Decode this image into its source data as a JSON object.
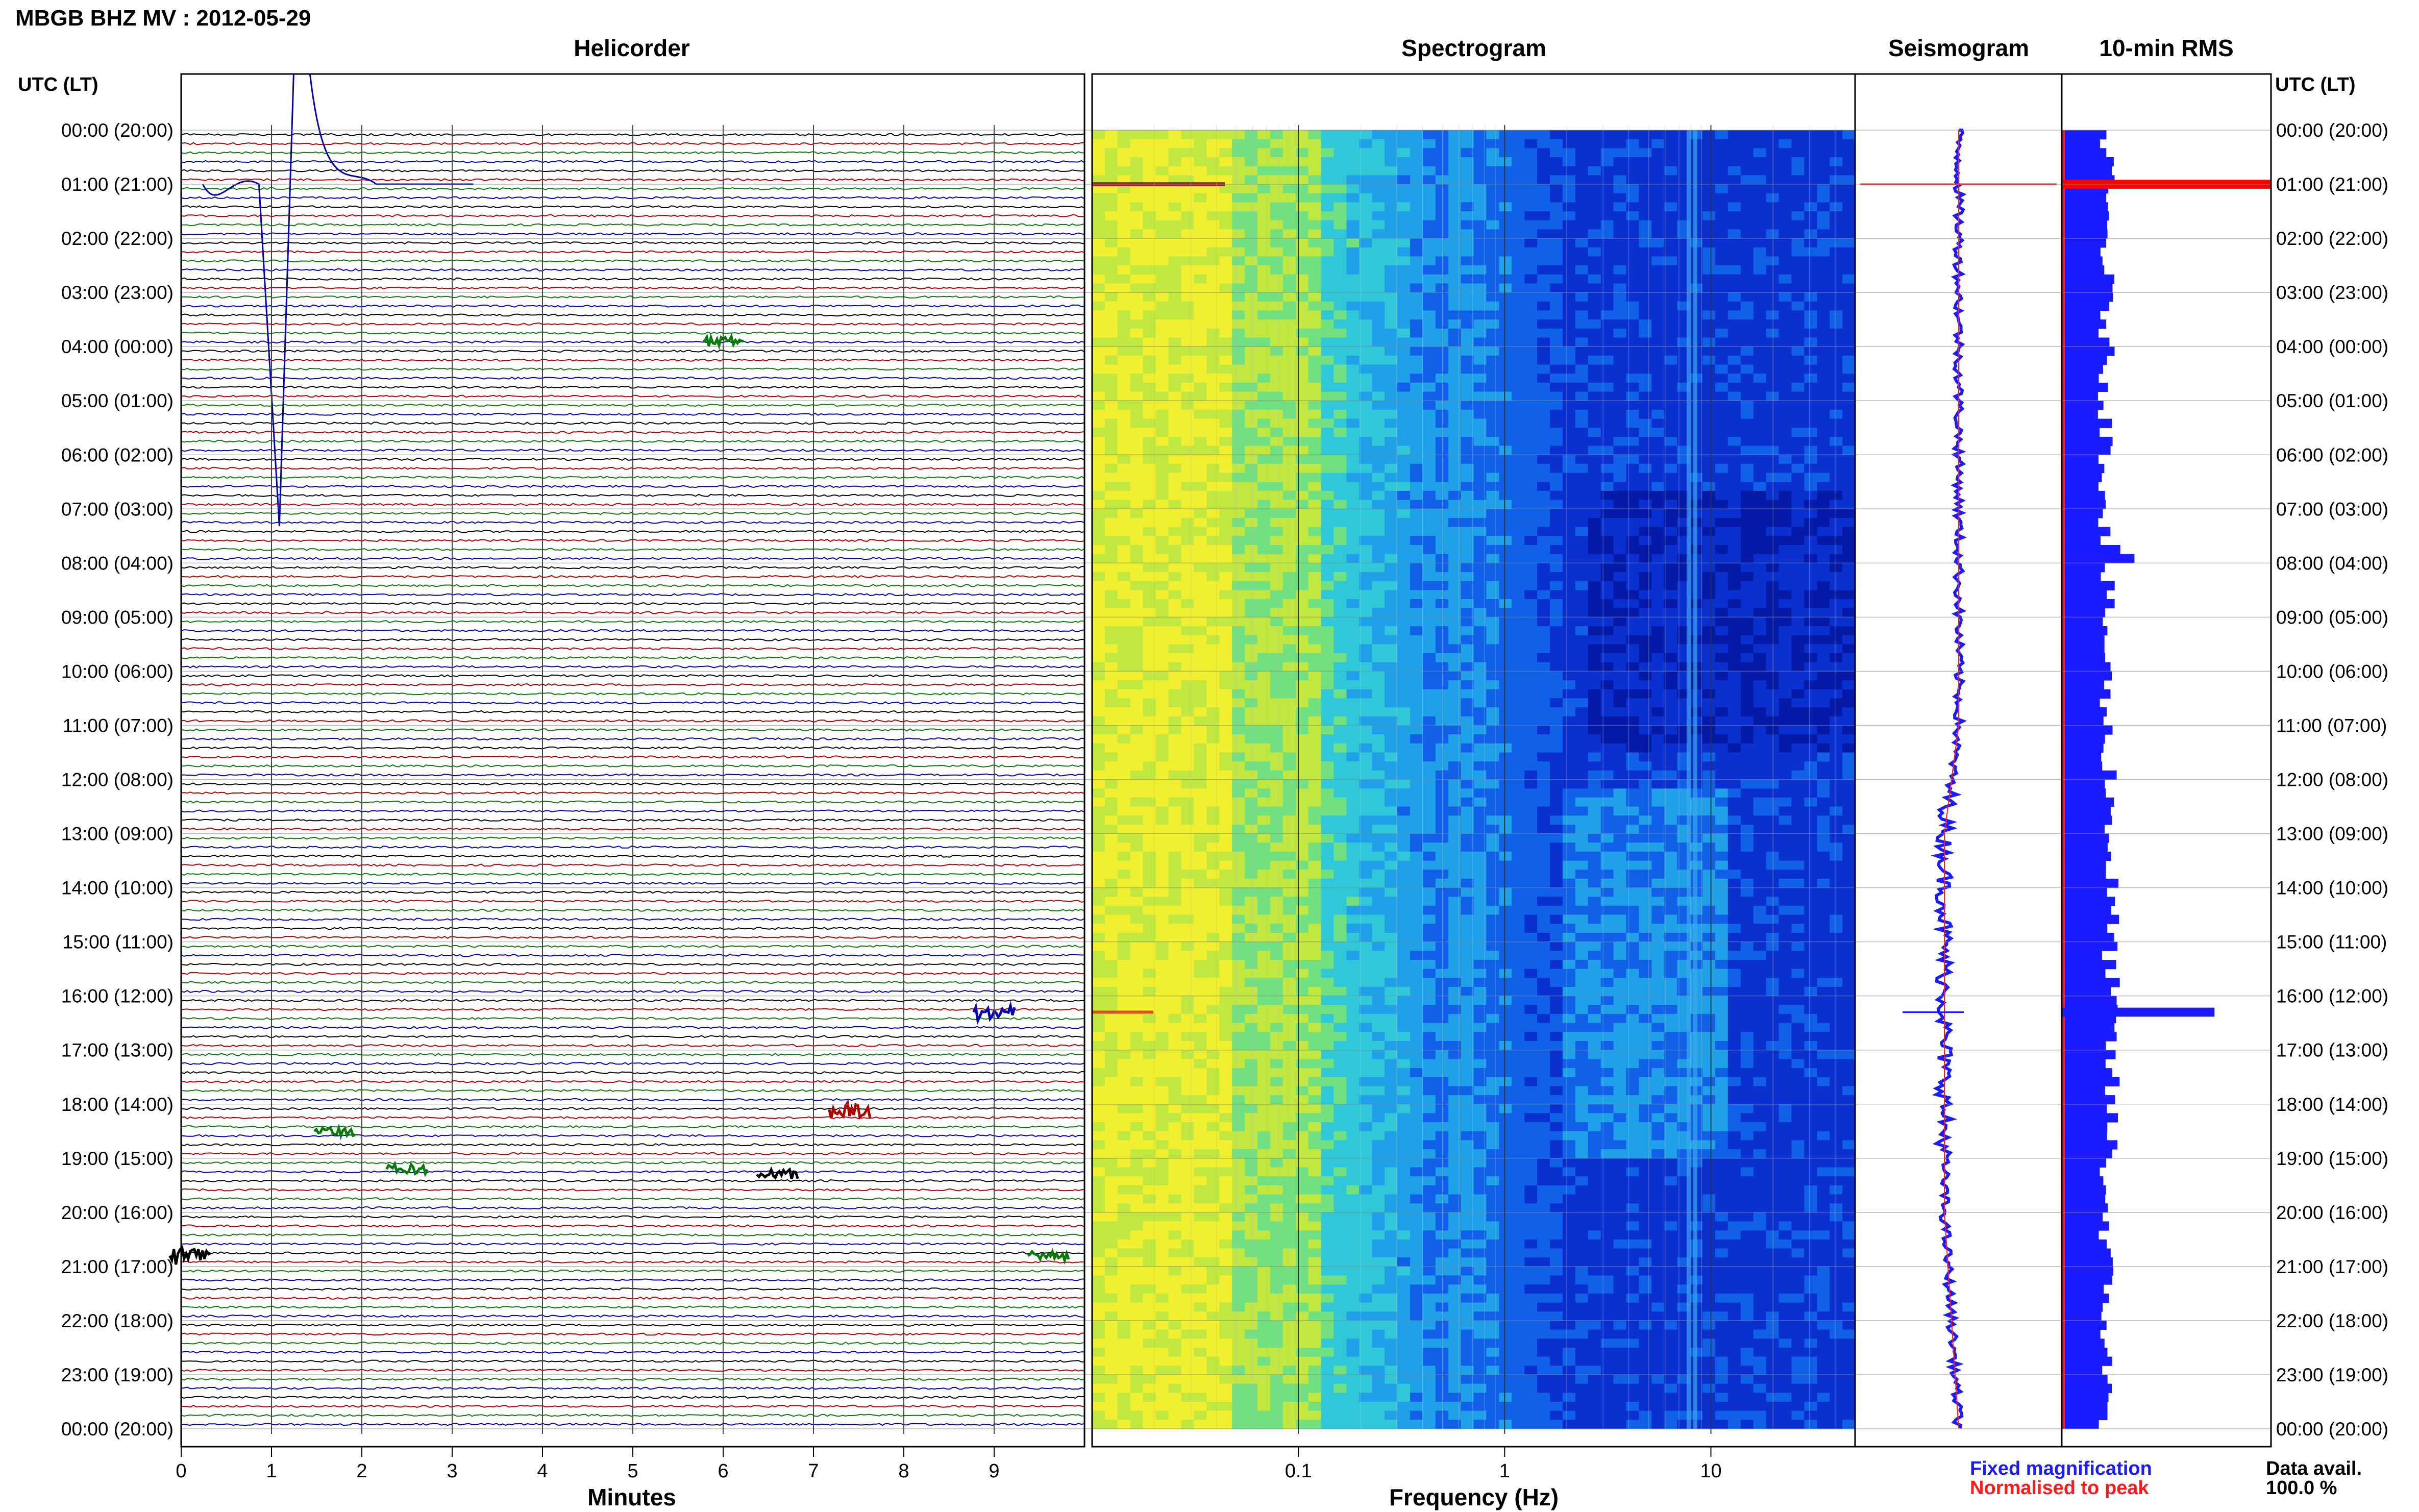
{
  "header": {
    "station_title": "MBGB BHZ MV : 2012-05-29"
  },
  "panels": {
    "helicorder": "Helicorder",
    "spectrogram": "Spectrogram",
    "seismogram": "Seismogram",
    "rms": "10-min RMS"
  },
  "time_axis_label": "UTC (LT)",
  "hour_labels": [
    "00:00 (20:00)",
    "01:00 (21:00)",
    "02:00 (22:00)",
    "03:00 (23:00)",
    "04:00 (00:00)",
    "05:00 (01:00)",
    "06:00 (02:00)",
    "07:00 (03:00)",
    "08:00 (04:00)",
    "09:00 (05:00)",
    "10:00 (06:00)",
    "11:00 (07:00)",
    "12:00 (08:00)",
    "13:00 (09:00)",
    "14:00 (10:00)",
    "15:00 (11:00)",
    "16:00 (12:00)",
    "17:00 (13:00)",
    "18:00 (14:00)",
    "19:00 (15:00)",
    "20:00 (16:00)",
    "21:00 (17:00)",
    "22:00 (18:00)",
    "23:00 (19:00)",
    "00:00 (20:00)"
  ],
  "axes": {
    "minutes_label": "Minutes",
    "minutes_ticks": [
      "0",
      "1",
      "2",
      "3",
      "4",
      "5",
      "6",
      "7",
      "8",
      "9"
    ],
    "frequency_label": "Frequency (Hz)",
    "frequency_ticks": [
      "0.1",
      "1",
      "10"
    ]
  },
  "legend": {
    "fixed": "Fixed magnification",
    "normalised": "Normalised to peak"
  },
  "data_avail": {
    "label": "Data avail.",
    "value": "100.0 %"
  },
  "colors": {
    "trace_cycle": [
      "#000000",
      "#b00000",
      "#0a7a0a",
      "#0000b0"
    ],
    "fixed_magnification": "#1b1bff",
    "normalised_to_peak": "#ff1b1b",
    "grid": "#888888",
    "spectrogram_colormap": [
      "#f0f030",
      "#c0e840",
      "#70e080",
      "#30c8d8",
      "#20a0e8",
      "#1060e8",
      "#0a30d0",
      "#061aa8",
      "#041070"
    ]
  },
  "chart_data": [
    {
      "type": "line",
      "title": "Helicorder",
      "xlabel": "Minutes",
      "xlim": [
        0,
        10
      ],
      "x_ticks": [
        0,
        1,
        2,
        3,
        4,
        5,
        6,
        7,
        8,
        9
      ],
      "rows_per_hour": 6,
      "row_minutes": 10,
      "events": [
        {
          "hour": 1.0,
          "minute": 1.2,
          "amplitude": "off-scale",
          "color": "blue"
        },
        {
          "hour": 16.3,
          "minute": 9.0,
          "amplitude": "moderate",
          "color": "blue"
        },
        {
          "hour": 18.1,
          "minute": 7.4,
          "amplitude": "moderate",
          "color": "red"
        },
        {
          "hour": 18.5,
          "minute": 1.7,
          "amplitude": "small",
          "color": "green"
        },
        {
          "hour": 19.2,
          "minute": 2.5,
          "amplitude": "small",
          "color": "green"
        },
        {
          "hour": 19.3,
          "minute": 6.6,
          "amplitude": "small",
          "color": "black"
        },
        {
          "hour": 20.8,
          "minute": 0.1,
          "amplitude": "moderate",
          "color": "black"
        },
        {
          "hour": 20.8,
          "minute": 9.6,
          "amplitude": "small",
          "color": "green"
        },
        {
          "hour": 3.9,
          "minute": 6.0,
          "amplitude": "small",
          "color": "green"
        }
      ]
    },
    {
      "type": "heatmap",
      "title": "Spectrogram",
      "xlabel": "Frequency (Hz)",
      "x_scale": "log",
      "xlim": [
        0.01,
        50
      ],
      "x_ticks": [
        0.1,
        1,
        10
      ],
      "ylim_hours": [
        0,
        24
      ],
      "notes": "high power (yellow-green) below ~0.1 Hz, cyan to ~1.5 Hz, low power (dark blue) above ~2 Hz; strong lines near 8 Hz; elevated 3-10 Hz energy 12:00-19:00 UTC"
    },
    {
      "type": "line",
      "title": "Seismogram",
      "series": [
        {
          "name": "Fixed magnification",
          "color": "blue"
        },
        {
          "name": "Normalised to peak",
          "color": "red"
        }
      ],
      "ylim_hours": [
        0,
        24
      ]
    },
    {
      "type": "bar",
      "title": "10-min RMS",
      "orientation": "horizontal",
      "ylim_hours": [
        0,
        24
      ],
      "spikes": [
        {
          "hour": 1.0,
          "relative": 1.0
        },
        {
          "hour": 16.3,
          "relative": 0.73
        }
      ],
      "baseline_relative": 0.23
    }
  ]
}
